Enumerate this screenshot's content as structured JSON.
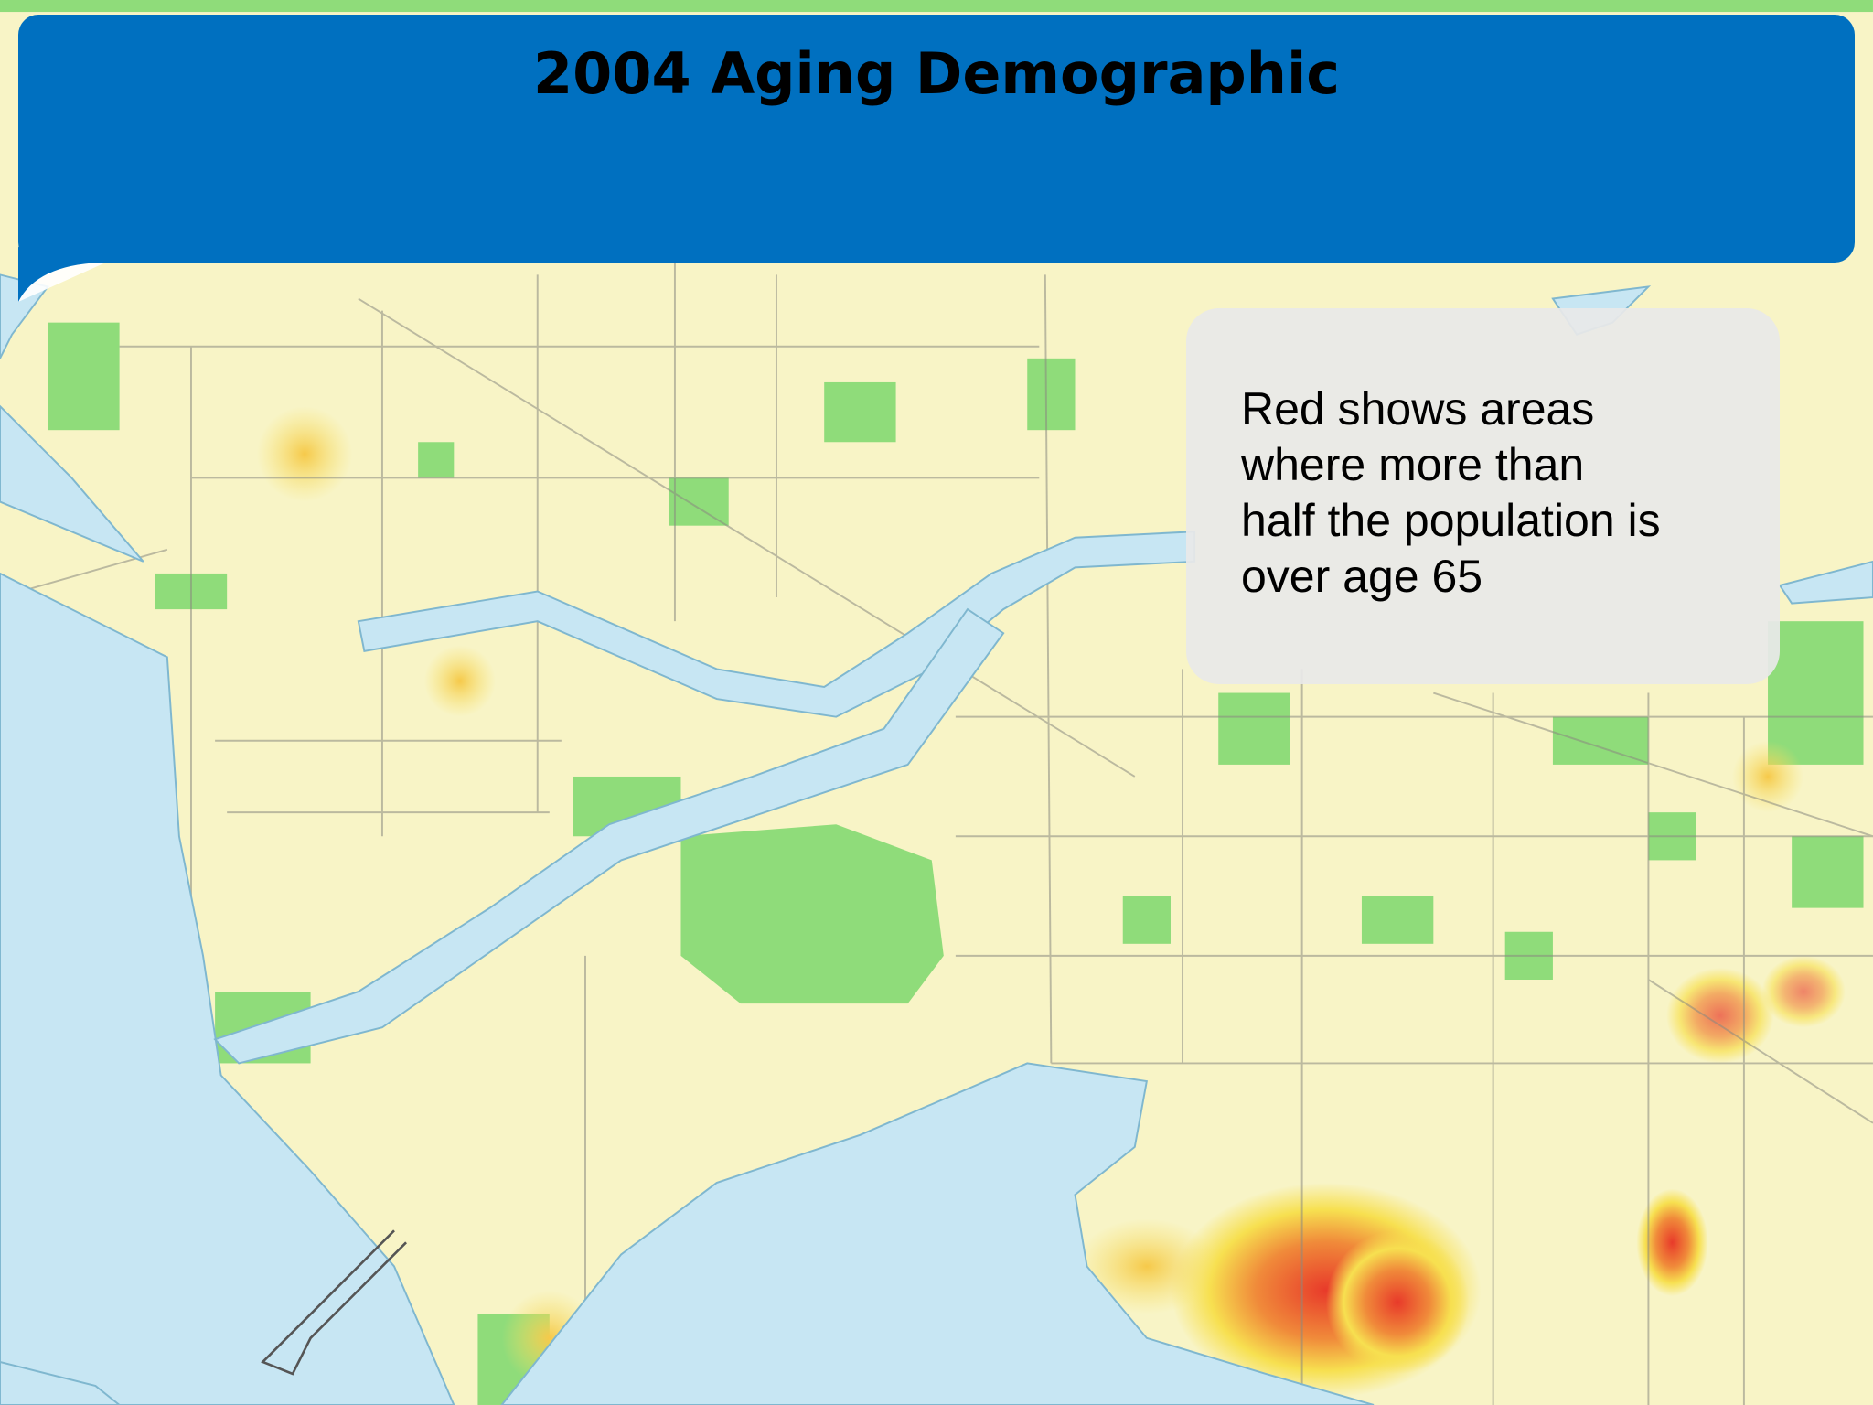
{
  "header": {
    "title": "2004 Aging Demographic"
  },
  "callout": {
    "lines": [
      "Red shows areas",
      "where more than",
      "half the population is",
      "over age 65"
    ]
  }
}
